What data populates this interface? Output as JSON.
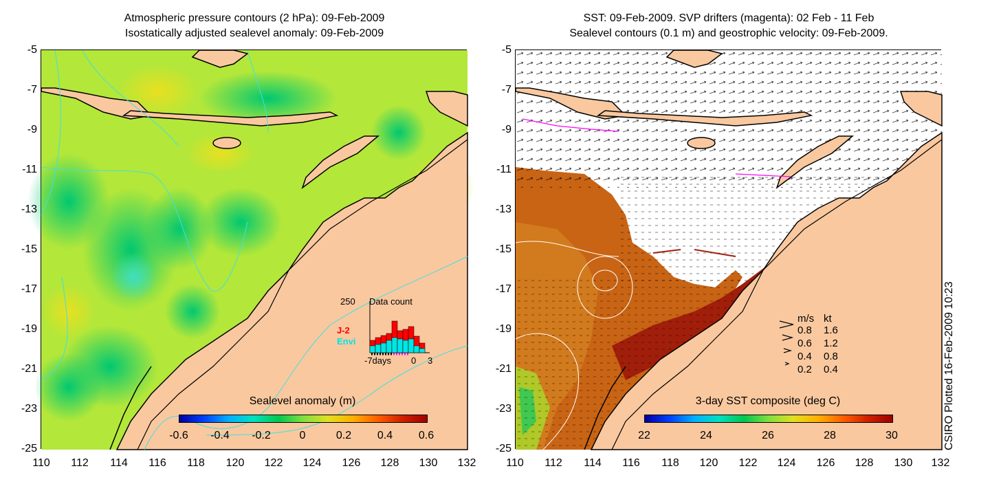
{
  "left_panel": {
    "title_line1": "Atmospheric pressure contours (2 hPa): 09-Feb-2009",
    "title_line2": "Isostatically adjusted sealevel anomaly: 09-Feb-2009",
    "colorbar_title": "Sealevel anomaly (m)",
    "colorbar_ticks": [
      "-0.6",
      "-0.4",
      "-0.2",
      "0",
      "0.2",
      "0.4",
      "0.6"
    ],
    "inset": {
      "max_label": "250",
      "title": "Data count",
      "series_j2": "J-2",
      "series_envi": "Envi",
      "x_labels": [
        "-7days",
        "0",
        "3"
      ],
      "j2_color": "#ff0000",
      "envi_color": "#00e5e5"
    }
  },
  "right_panel": {
    "title_line1": "SST: 09-Feb-2009. SVP drifters (magenta): 02 Feb - 11 Feb",
    "title_line2": "Sealevel contours (0.1 m) and geostrophic velocity: 09-Feb-2009.",
    "colorbar_title": "3-day SST composite (deg C)",
    "colorbar_ticks": [
      "22",
      "24",
      "26",
      "28",
      "30"
    ],
    "velocity_legend": {
      "header_ms": "m/s",
      "header_kt": "kt",
      "rows": [
        {
          "ms": "0.8",
          "kt": "1.6"
        },
        {
          "ms": "0.6",
          "kt": "1.2"
        },
        {
          "ms": "0.4",
          "kt": "0.8"
        },
        {
          "ms": "0.2",
          "kt": "0.4"
        }
      ]
    }
  },
  "axes": {
    "y_ticks": [
      "-5",
      "-7",
      "-9",
      "-11",
      "-13",
      "-15",
      "-17",
      "-19",
      "-21",
      "-23",
      "-25"
    ],
    "x_ticks": [
      "110",
      "112",
      "114",
      "116",
      "118",
      "120",
      "122",
      "124",
      "126",
      "128",
      "130",
      "132"
    ]
  },
  "credit": "CSIRO Plotted 16-Feb-2009 10:23",
  "colors": {
    "land": "#f9c89f",
    "sea_green": "#4cd24c",
    "sea_yellow": "#d4e832",
    "sst_orange": "#c86414",
    "sst_dark": "#a01e0a",
    "contour_cyan": "#40e0e0"
  }
}
